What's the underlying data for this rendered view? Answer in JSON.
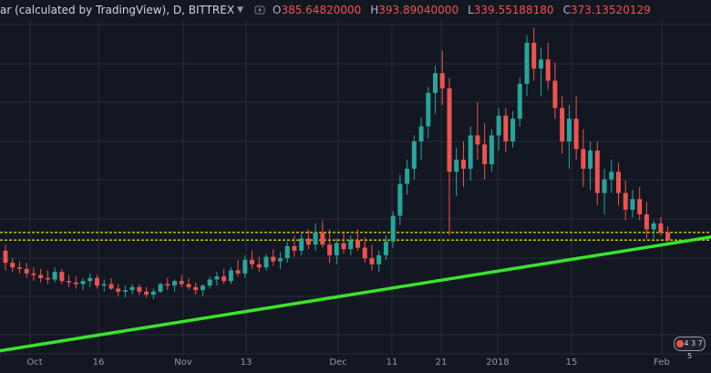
{
  "legend": {
    "title": "ollar (calculated by TradingView), D, BITTREX",
    "open_label": "O",
    "open": "385.64820000",
    "high_label": "H",
    "high": "393.89040000",
    "low_label": "L",
    "low": "339.55188180",
    "close_label": "C",
    "close": "373.13520129"
  },
  "badge": {
    "text": "4 3 7 5"
  },
  "icons": {
    "visibility": "eye-icon",
    "dropdown": "caret-down-icon"
  },
  "colors": {
    "background": "#131722",
    "grid": "#2a2e39",
    "up": "#26a69a",
    "down": "#ef5350",
    "support_line": "#39e52a",
    "horizontal_levels": "#e5e500",
    "axis_text": "#9598a1"
  },
  "chart_data": {
    "type": "candlestick",
    "title": "",
    "xlabel": "",
    "ylabel": "",
    "x_ticks": [
      "Oct",
      "16",
      "Nov",
      "13",
      "Dec",
      "11",
      "21",
      "2018",
      "15",
      "Feb"
    ],
    "grid": true,
    "y_range": [
      190,
      410
    ],
    "horizontal_levels": [
      270,
      265
    ],
    "trendline": {
      "from": [
        "Sep 24",
        192
      ],
      "to": [
        "Feb 10",
        267
      ]
    },
    "series": [
      {
        "name": "",
        "ohlc": [
          [
            258,
            262,
            245,
            250
          ],
          [
            250,
            253,
            244,
            247
          ],
          [
            247,
            251,
            243,
            246
          ],
          [
            246,
            250,
            240,
            243
          ],
          [
            243,
            247,
            238,
            242
          ],
          [
            242,
            246,
            237,
            240
          ],
          [
            240,
            245,
            236,
            239
          ],
          [
            239,
            247,
            237,
            244
          ],
          [
            244,
            246,
            236,
            238
          ],
          [
            238,
            242,
            234,
            237
          ],
          [
            237,
            241,
            233,
            236
          ],
          [
            236,
            240,
            232,
            238
          ],
          [
            238,
            243,
            234,
            240
          ],
          [
            240,
            242,
            233,
            235
          ],
          [
            235,
            239,
            231,
            236
          ],
          [
            236,
            240,
            232,
            233
          ],
          [
            233,
            236,
            228,
            231
          ],
          [
            231,
            235,
            227,
            232
          ],
          [
            232,
            236,
            229,
            234
          ],
          [
            234,
            236,
            229,
            231
          ],
          [
            231,
            234,
            227,
            229
          ],
          [
            229,
            233,
            226,
            231
          ],
          [
            231,
            237,
            230,
            236
          ],
          [
            236,
            240,
            232,
            235
          ],
          [
            235,
            239,
            231,
            238
          ],
          [
            238,
            242,
            234,
            236
          ],
          [
            236,
            240,
            232,
            234
          ],
          [
            234,
            237,
            229,
            232
          ],
          [
            232,
            236,
            228,
            235
          ],
          [
            235,
            241,
            233,
            239
          ],
          [
            239,
            244,
            235,
            241
          ],
          [
            241,
            246,
            236,
            238
          ],
          [
            238,
            247,
            236,
            245
          ],
          [
            245,
            252,
            241,
            243
          ],
          [
            243,
            255,
            240,
            252
          ],
          [
            252,
            258,
            246,
            249
          ],
          [
            249,
            254,
            244,
            247
          ],
          [
            247,
            256,
            245,
            254
          ],
          [
            254,
            259,
            248,
            251
          ],
          [
            251,
            257,
            246,
            253
          ],
          [
            253,
            264,
            250,
            261
          ],
          [
            261,
            268,
            254,
            258
          ],
          [
            258,
            270,
            255,
            266
          ],
          [
            266,
            272,
            259,
            262
          ],
          [
            262,
            276,
            258,
            270
          ],
          [
            270,
            278,
            260,
            262
          ],
          [
            262,
            272,
            250,
            255
          ],
          [
            255,
            266,
            249,
            263
          ],
          [
            263,
            270,
            256,
            259
          ],
          [
            259,
            268,
            255,
            265
          ],
          [
            265,
            272,
            258,
            260
          ],
          [
            260,
            267,
            250,
            253
          ],
          [
            253,
            262,
            245,
            249
          ],
          [
            249,
            258,
            244,
            255
          ],
          [
            255,
            268,
            252,
            264
          ],
          [
            264,
            284,
            260,
            281
          ],
          [
            281,
            308,
            275,
            302
          ],
          [
            302,
            318,
            295,
            312
          ],
          [
            312,
            334,
            305,
            330
          ],
          [
            330,
            346,
            318,
            340
          ],
          [
            340,
            366,
            332,
            362
          ],
          [
            362,
            380,
            348,
            375
          ],
          [
            375,
            390,
            354,
            365
          ],
          [
            365,
            372,
            268,
            310
          ],
          [
            310,
            326,
            294,
            318
          ],
          [
            318,
            330,
            300,
            312
          ],
          [
            312,
            340,
            304,
            334
          ],
          [
            334,
            356,
            318,
            328
          ],
          [
            328,
            342,
            305,
            315
          ],
          [
            315,
            338,
            310,
            334
          ],
          [
            334,
            352,
            324,
            347
          ],
          [
            347,
            352,
            323,
            330
          ],
          [
            330,
            350,
            326,
            345
          ],
          [
            345,
            372,
            340,
            368
          ],
          [
            368,
            400,
            360,
            395
          ],
          [
            395,
            405,
            370,
            378
          ],
          [
            378,
            392,
            360,
            384
          ],
          [
            384,
            395,
            364,
            370
          ],
          [
            370,
            382,
            345,
            352
          ],
          [
            352,
            360,
            322,
            330
          ],
          [
            330,
            354,
            312,
            345
          ],
          [
            345,
            360,
            318,
            325
          ],
          [
            325,
            338,
            300,
            312
          ],
          [
            312,
            330,
            298,
            324
          ],
          [
            324,
            330,
            288,
            296
          ],
          [
            296,
            312,
            282,
            305
          ],
          [
            305,
            318,
            296,
            310
          ],
          [
            310,
            316,
            288,
            296
          ],
          [
            296,
            304,
            278,
            285
          ],
          [
            285,
            298,
            280,
            292
          ],
          [
            292,
            300,
            278,
            282
          ],
          [
            282,
            290,
            266,
            272
          ],
          [
            272,
            278,
            266,
            276
          ],
          [
            276,
            280,
            268,
            270
          ],
          [
            270,
            274,
            263,
            265
          ]
        ]
      }
    ]
  }
}
